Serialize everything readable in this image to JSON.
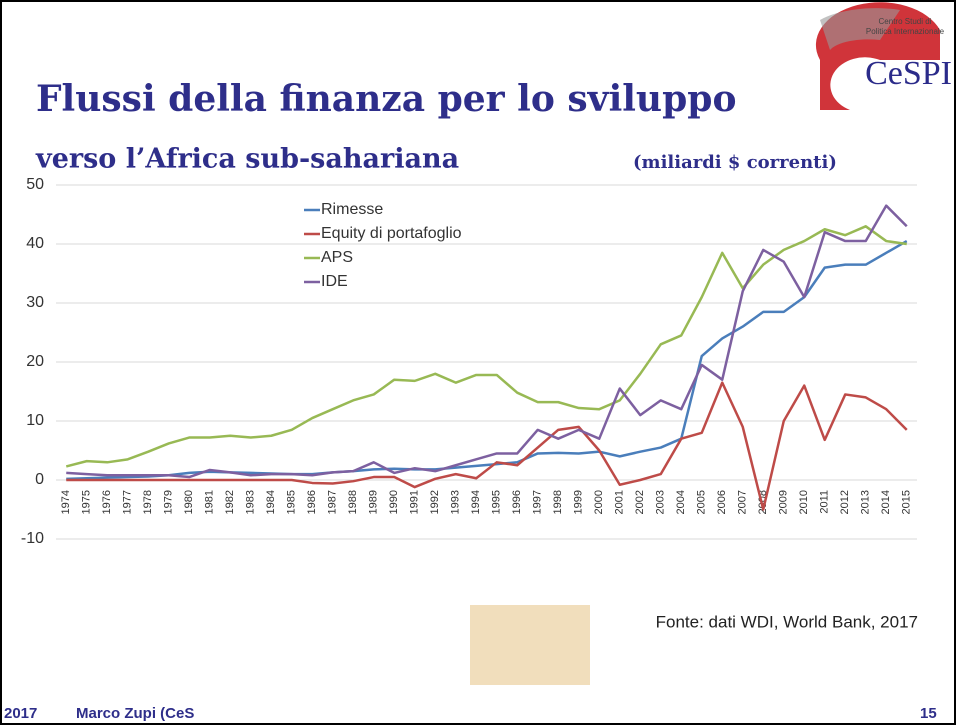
{
  "slide": {
    "logo_line1": "Centro Studi di",
    "logo_line2": "Politica Internazionale",
    "logo_name": "CeSPI",
    "footer_year": "2017",
    "footer_author": "Marco Zupi (CeS",
    "page_number": "15"
  },
  "chart_data": {
    "type": "line",
    "title": "Flussi della finanza per lo sviluppo",
    "subtitle": "verso l’Africa sub-sahariana",
    "unit_note": "(miliardi $ correnti)",
    "source": "Fonte: dati WDI, World Bank, 2017",
    "categories": [
      "1974",
      "1975",
      "1976",
      "1977",
      "1978",
      "1979",
      "1980",
      "1981",
      "1982",
      "1983",
      "1984",
      "1985",
      "1986",
      "1987",
      "1988",
      "1989",
      "1990",
      "1991",
      "1992",
      "1993",
      "1994",
      "1995",
      "1996",
      "1997",
      "1998",
      "1999",
      "2000",
      "2001",
      "2002",
      "2003",
      "2004",
      "2005",
      "2006",
      "2007",
      "2008",
      "2009",
      "2010",
      "2011",
      "2012",
      "2013",
      "2014",
      "2015"
    ],
    "series": [
      {
        "name": "Rimesse",
        "color": "#4a7ebb",
        "values": [
          0.2,
          0.3,
          0.4,
          0.5,
          0.6,
          0.8,
          1.2,
          1.4,
          1.3,
          1.2,
          1.1,
          1.0,
          1.0,
          1.3,
          1.5,
          1.8,
          1.9,
          1.8,
          1.8,
          2.1,
          2.4,
          2.7,
          3.0,
          4.5,
          4.6,
          4.5,
          4.8,
          4.0,
          4.8,
          5.5,
          7.0,
          21,
          24,
          26,
          28.5,
          28.5,
          31,
          36,
          36.5,
          36.5,
          38.5,
          40.5
        ]
      },
      {
        "name": "Equity di portafoglio",
        "color": "#be4b48",
        "values": [
          0,
          0,
          0,
          0,
          0,
          0,
          0,
          0,
          0,
          0,
          0,
          0,
          -0.5,
          -0.6,
          -0.2,
          0.5,
          0.5,
          -1.2,
          0.2,
          1,
          0.3,
          3,
          2.5,
          5.5,
          8.5,
          9,
          5,
          -0.8,
          0,
          1,
          7,
          8,
          16.5,
          9,
          -5,
          10,
          16,
          6.8,
          14.5,
          14,
          12,
          8.5
        ]
      },
      {
        "name": "APS",
        "color": "#98b954",
        "values": [
          2.3,
          3.2,
          3,
          3.5,
          4.8,
          6.2,
          7.2,
          7.2,
          7.5,
          7.2,
          7.5,
          8.5,
          10.5,
          12,
          13.5,
          14.5,
          17,
          16.8,
          18,
          16.5,
          17.8,
          17.8,
          14.8,
          13.2,
          13.2,
          12.2,
          12,
          13.5,
          18,
          23,
          24.5,
          31,
          38.5,
          32.5,
          36.5,
          39,
          40.5,
          42.5,
          41.5,
          43,
          40.5,
          40
        ]
      },
      {
        "name": "IDE",
        "color": "#7d60a0",
        "values": [
          1.2,
          1.0,
          0.8,
          0.8,
          0.8,
          0.8,
          0.5,
          1.7,
          1.3,
          0.8,
          1.0,
          1.0,
          0.8,
          1.3,
          1.5,
          3,
          1.2,
          2,
          1.5,
          2.5,
          3.5,
          4.5,
          4.5,
          8.5,
          7,
          8.5,
          7,
          15.5,
          11,
          13.5,
          12,
          19.5,
          17,
          32,
          39,
          37,
          31,
          42,
          40.5,
          40.5,
          46.5,
          43
        ]
      }
    ],
    "ylim": [
      -10,
      50
    ],
    "yticks": [
      -10,
      0,
      10,
      20,
      30,
      40,
      50
    ],
    "grid": true
  }
}
